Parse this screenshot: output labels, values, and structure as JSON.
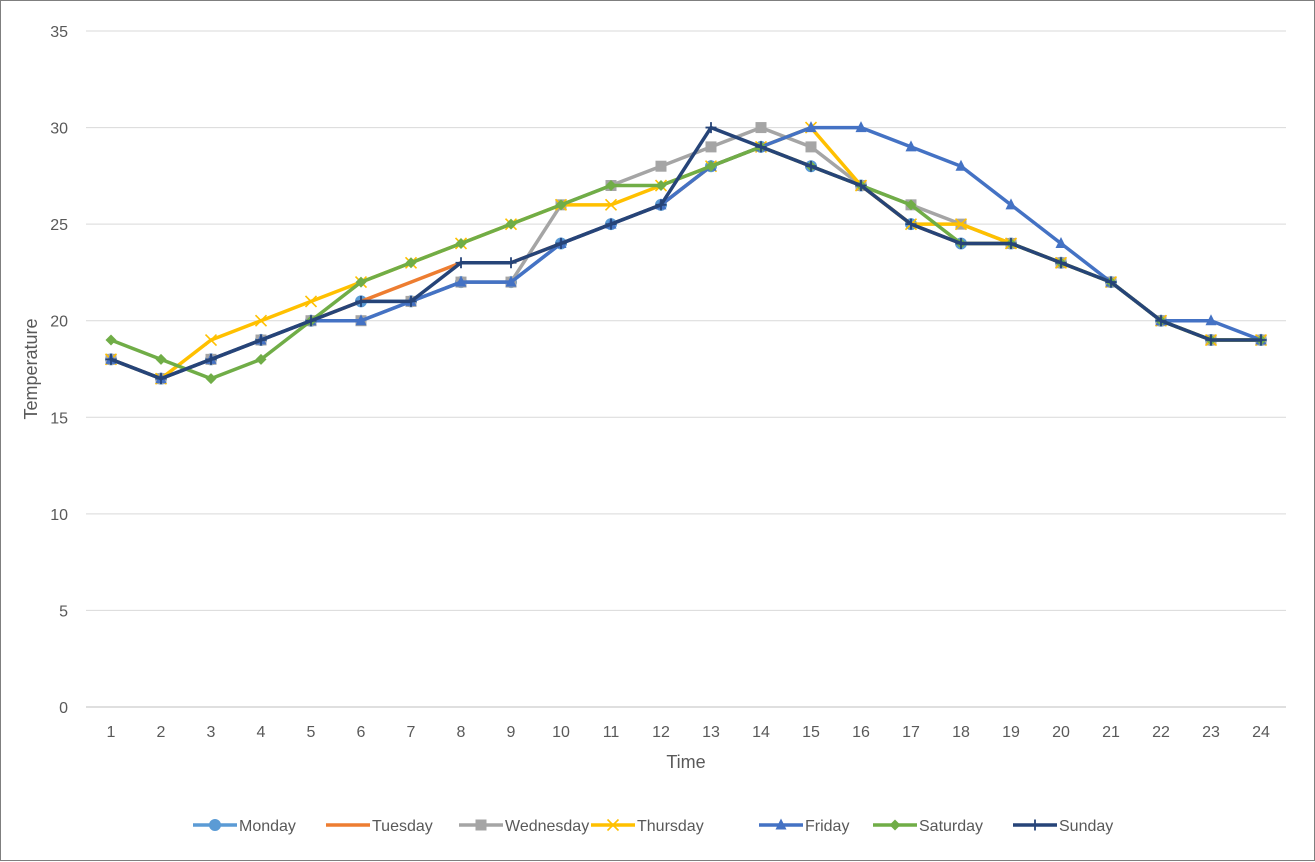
{
  "chart_data": {
    "type": "line",
    "title": "",
    "xlabel": "Time",
    "ylabel": "Temperature",
    "x": [
      1,
      2,
      3,
      4,
      5,
      6,
      7,
      8,
      9,
      10,
      11,
      12,
      13,
      14,
      15,
      16,
      17,
      18,
      19,
      20,
      21,
      22,
      23,
      24
    ],
    "ylim": [
      0,
      35
    ],
    "yticks": [
      0,
      5,
      10,
      15,
      20,
      25,
      30,
      35
    ],
    "grid": "horizontal",
    "legend": "bottom",
    "series": [
      {
        "name": "Monday",
        "color": "#5b9bd5",
        "marker": "circle",
        "values": [
          18,
          17,
          18,
          19,
          20,
          21,
          21,
          22,
          22,
          24,
          25,
          26,
          28,
          29,
          28,
          27,
          25,
          24,
          24,
          23,
          22,
          20,
          19,
          19
        ]
      },
      {
        "name": "Tuesday",
        "color": "#ed7d31",
        "marker": "none",
        "values": [
          18,
          17,
          18,
          19,
          20,
          21,
          22,
          23,
          23,
          24,
          25,
          26,
          28,
          29,
          28,
          27,
          25,
          24,
          24,
          23,
          22,
          20,
          19,
          19
        ]
      },
      {
        "name": "Wednesday",
        "color": "#a5a5a5",
        "marker": "square",
        "values": [
          18,
          17,
          18,
          19,
          20,
          20,
          21,
          22,
          22,
          26,
          27,
          28,
          29,
          30,
          29,
          27,
          26,
          25,
          24,
          23,
          22,
          20,
          19,
          19
        ]
      },
      {
        "name": "Thursday",
        "color": "#ffc000",
        "marker": "x",
        "values": [
          18,
          17,
          19,
          20,
          21,
          22,
          23,
          24,
          25,
          26,
          26,
          27,
          28,
          29,
          30,
          27,
          25,
          25,
          24,
          23,
          22,
          20,
          19,
          19
        ]
      },
      {
        "name": "Friday",
        "color": "#4472c4",
        "marker": "triangle",
        "values": [
          18,
          17,
          18,
          19,
          20,
          20,
          21,
          22,
          22,
          24,
          25,
          26,
          28,
          29,
          30,
          30,
          29,
          28,
          26,
          24,
          22,
          20,
          20,
          19
        ]
      },
      {
        "name": "Saturday",
        "color": "#70ad47",
        "marker": "diamond",
        "values": [
          19,
          18,
          17,
          18,
          20,
          22,
          23,
          24,
          25,
          26,
          27,
          27,
          28,
          29,
          28,
          27,
          26,
          24,
          24,
          23,
          22,
          20,
          19,
          19
        ]
      },
      {
        "name": "Sunday",
        "color": "#264478",
        "marker": "plus",
        "values": [
          18,
          17,
          18,
          19,
          20,
          21,
          21,
          23,
          23,
          24,
          25,
          26,
          30,
          29,
          28,
          27,
          25,
          24,
          24,
          23,
          22,
          20,
          19,
          19
        ]
      }
    ]
  }
}
